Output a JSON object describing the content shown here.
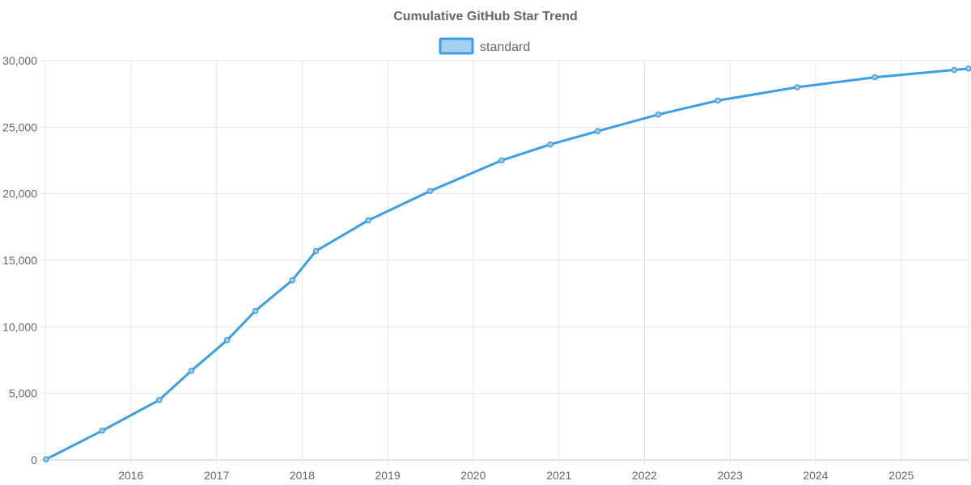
{
  "chart_data": {
    "type": "line",
    "title": "Cumulative GitHub Star Trend",
    "xlabel": "",
    "ylabel": "",
    "x_axis_type": "time",
    "xlim": [
      "2015-01-01",
      "2025-10-15"
    ],
    "ylim": [
      0,
      30000
    ],
    "x_tick_labels": [
      "2016",
      "2017",
      "2018",
      "2019",
      "2020",
      "2021",
      "2022",
      "2023",
      "2024",
      "2025"
    ],
    "y_tick_labels": [
      "0",
      "5,000",
      "10,000",
      "15,000",
      "20,000",
      "25,000",
      "30,000"
    ],
    "y_ticks": [
      0,
      5000,
      10000,
      15000,
      20000,
      25000,
      30000
    ],
    "grid": true,
    "legend_position": "top",
    "series": [
      {
        "name": "standard",
        "color": "#3d9fe3",
        "fill_color": "#a6d0f2",
        "points": [
          {
            "x": "2015-01-04",
            "y": 50
          },
          {
            "x": "2015-09-01",
            "y": 2200
          },
          {
            "x": "2016-05-01",
            "y": 4500
          },
          {
            "x": "2016-09-15",
            "y": 6700
          },
          {
            "x": "2017-02-15",
            "y": 9000
          },
          {
            "x": "2017-06-15",
            "y": 11200
          },
          {
            "x": "2017-11-20",
            "y": 13500
          },
          {
            "x": "2018-03-01",
            "y": 15700
          },
          {
            "x": "2018-10-10",
            "y": 18000
          },
          {
            "x": "2019-07-01",
            "y": 20200
          },
          {
            "x": "2020-05-01",
            "y": 22500
          },
          {
            "x": "2020-11-25",
            "y": 23700
          },
          {
            "x": "2021-06-15",
            "y": 24700
          },
          {
            "x": "2022-03-01",
            "y": 25950
          },
          {
            "x": "2022-11-10",
            "y": 27000
          },
          {
            "x": "2023-10-15",
            "y": 28000
          },
          {
            "x": "2024-09-10",
            "y": 28750
          },
          {
            "x": "2025-08-15",
            "y": 29300
          },
          {
            "x": "2025-10-15",
            "y": 29400
          }
        ]
      }
    ]
  }
}
